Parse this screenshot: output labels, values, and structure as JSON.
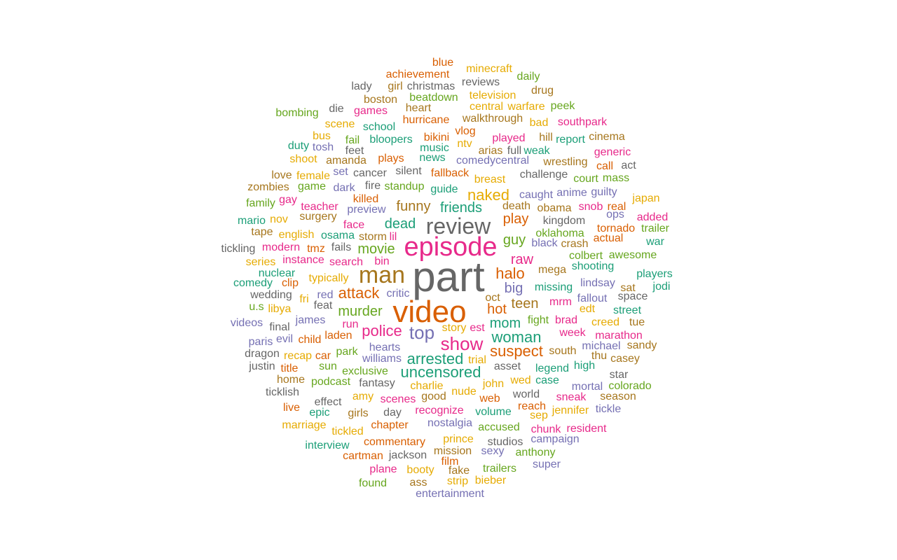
{
  "chart_data": {
    "type": "wordcloud",
    "title": "",
    "palette": [
      "#1b9e77",
      "#d95f02",
      "#7570b3",
      "#e7298a",
      "#66a61e",
      "#e6ab02",
      "#a6761d",
      "#666666"
    ],
    "words": [
      {
        "text": "part",
        "weight": 60
      },
      {
        "text": "video",
        "weight": 44
      },
      {
        "text": "episode",
        "weight": 38
      },
      {
        "text": "man",
        "weight": 34
      },
      {
        "text": "review",
        "weight": 32
      },
      {
        "text": "top",
        "weight": 26
      },
      {
        "text": "show",
        "weight": 26
      },
      {
        "text": "police",
        "weight": 22
      },
      {
        "text": "arrested",
        "weight": 22
      },
      {
        "text": "uncensored",
        "weight": 22
      },
      {
        "text": "woman",
        "weight": 22
      },
      {
        "text": "suspect",
        "weight": 22
      },
      {
        "text": "naked",
        "weight": 22
      },
      {
        "text": "halo",
        "weight": 22
      },
      {
        "text": "attack",
        "weight": 22
      },
      {
        "text": "movie",
        "weight": 20
      },
      {
        "text": "murder",
        "weight": 20
      },
      {
        "text": "dead",
        "weight": 20
      },
      {
        "text": "funny",
        "weight": 20
      },
      {
        "text": "friends",
        "weight": 20
      },
      {
        "text": "play",
        "weight": 20
      },
      {
        "text": "guy",
        "weight": 20
      },
      {
        "text": "raw",
        "weight": 20
      },
      {
        "text": "big",
        "weight": 20
      },
      {
        "text": "teen",
        "weight": 20
      },
      {
        "text": "hot",
        "weight": 20
      },
      {
        "text": "mom",
        "weight": 20
      },
      {
        "text": "blue",
        "weight": 16
      },
      {
        "text": "achievement",
        "weight": 16
      },
      {
        "text": "minecraft",
        "weight": 16
      },
      {
        "text": "daily",
        "weight": 16
      },
      {
        "text": "reviews",
        "weight": 16
      },
      {
        "text": "lady",
        "weight": 16
      },
      {
        "text": "girl",
        "weight": 16
      },
      {
        "text": "christmas",
        "weight": 16
      },
      {
        "text": "drug",
        "weight": 16
      },
      {
        "text": "television",
        "weight": 16
      },
      {
        "text": "boston",
        "weight": 16
      },
      {
        "text": "beatdown",
        "weight": 16
      },
      {
        "text": "die",
        "weight": 16
      },
      {
        "text": "games",
        "weight": 16
      },
      {
        "text": "heart",
        "weight": 16
      },
      {
        "text": "central",
        "weight": 16
      },
      {
        "text": "warfare",
        "weight": 16
      },
      {
        "text": "peek",
        "weight": 16
      },
      {
        "text": "bombing",
        "weight": 16
      },
      {
        "text": "hurricane",
        "weight": 16
      },
      {
        "text": "walkthrough",
        "weight": 16
      },
      {
        "text": "bad",
        "weight": 16
      },
      {
        "text": "southpark",
        "weight": 16
      },
      {
        "text": "scene",
        "weight": 16
      },
      {
        "text": "school",
        "weight": 16
      },
      {
        "text": "vlog",
        "weight": 16
      },
      {
        "text": "bus",
        "weight": 16
      },
      {
        "text": "bikini",
        "weight": 16
      },
      {
        "text": "played",
        "weight": 16
      },
      {
        "text": "hill",
        "weight": 16
      },
      {
        "text": "cinema",
        "weight": 16
      },
      {
        "text": "fail",
        "weight": 16
      },
      {
        "text": "bloopers",
        "weight": 16
      },
      {
        "text": "ntv",
        "weight": 16
      },
      {
        "text": "report",
        "weight": 16
      },
      {
        "text": "duty",
        "weight": 16
      },
      {
        "text": "tosh",
        "weight": 16
      },
      {
        "text": "feet",
        "weight": 16
      },
      {
        "text": "music",
        "weight": 16
      },
      {
        "text": "arias",
        "weight": 16
      },
      {
        "text": "full",
        "weight": 16
      },
      {
        "text": "weak",
        "weight": 16
      },
      {
        "text": "generic",
        "weight": 16
      },
      {
        "text": "shoot",
        "weight": 16
      },
      {
        "text": "amanda",
        "weight": 16
      },
      {
        "text": "plays",
        "weight": 16
      },
      {
        "text": "news",
        "weight": 16
      },
      {
        "text": "comedycentral",
        "weight": 16
      },
      {
        "text": "wrestling",
        "weight": 16
      },
      {
        "text": "call",
        "weight": 16
      },
      {
        "text": "act",
        "weight": 16
      },
      {
        "text": "love",
        "weight": 16
      },
      {
        "text": "set",
        "weight": 16
      },
      {
        "text": "cancer",
        "weight": 16
      },
      {
        "text": "silent",
        "weight": 16
      },
      {
        "text": "fallback",
        "weight": 16
      },
      {
        "text": "challenge",
        "weight": 16
      },
      {
        "text": "female",
        "weight": 16
      },
      {
        "text": "breast",
        "weight": 16
      },
      {
        "text": "court",
        "weight": 16
      },
      {
        "text": "mass",
        "weight": 16
      },
      {
        "text": "zombies",
        "weight": 16
      },
      {
        "text": "game",
        "weight": 16
      },
      {
        "text": "dark",
        "weight": 16
      },
      {
        "text": "fire",
        "weight": 16
      },
      {
        "text": "standup",
        "weight": 16
      },
      {
        "text": "guide",
        "weight": 16
      },
      {
        "text": "caught",
        "weight": 16
      },
      {
        "text": "anime",
        "weight": 16
      },
      {
        "text": "guilty",
        "weight": 16
      },
      {
        "text": "japan",
        "weight": 16
      },
      {
        "text": "family",
        "weight": 16
      },
      {
        "text": "gay",
        "weight": 16
      },
      {
        "text": "killed",
        "weight": 16
      },
      {
        "text": "teacher",
        "weight": 16
      },
      {
        "text": "death",
        "weight": 16
      },
      {
        "text": "obama",
        "weight": 16
      },
      {
        "text": "snob",
        "weight": 16
      },
      {
        "text": "real",
        "weight": 16
      },
      {
        "text": "preview",
        "weight": 16
      },
      {
        "text": "surgery",
        "weight": 16
      },
      {
        "text": "ops",
        "weight": 16
      },
      {
        "text": "added",
        "weight": 16
      },
      {
        "text": "mario",
        "weight": 16
      },
      {
        "text": "nov",
        "weight": 16
      },
      {
        "text": "face",
        "weight": 16
      },
      {
        "text": "kingdom",
        "weight": 16
      },
      {
        "text": "tornado",
        "weight": 16
      },
      {
        "text": "trailer",
        "weight": 16
      },
      {
        "text": "tape",
        "weight": 16
      },
      {
        "text": "english",
        "weight": 16
      },
      {
        "text": "osama",
        "weight": 16
      },
      {
        "text": "storm",
        "weight": 16
      },
      {
        "text": "lil",
        "weight": 16
      },
      {
        "text": "oklahoma",
        "weight": 16
      },
      {
        "text": "actual",
        "weight": 16
      },
      {
        "text": "tickling",
        "weight": 16
      },
      {
        "text": "modern",
        "weight": 16
      },
      {
        "text": "tmz",
        "weight": 16
      },
      {
        "text": "fails",
        "weight": 16
      },
      {
        "text": "black",
        "weight": 16
      },
      {
        "text": "crash",
        "weight": 16
      },
      {
        "text": "war",
        "weight": 16
      },
      {
        "text": "colbert",
        "weight": 16
      },
      {
        "text": "awesome",
        "weight": 16
      },
      {
        "text": "instance",
        "weight": 16
      },
      {
        "text": "search",
        "weight": 16
      },
      {
        "text": "bin",
        "weight": 16
      },
      {
        "text": "series",
        "weight": 16
      },
      {
        "text": "mega",
        "weight": 16
      },
      {
        "text": "shooting",
        "weight": 16
      },
      {
        "text": "nuclear",
        "weight": 16
      },
      {
        "text": "players",
        "weight": 16
      },
      {
        "text": "typically",
        "weight": 16
      },
      {
        "text": "lindsay",
        "weight": 16
      },
      {
        "text": "comedy",
        "weight": 16
      },
      {
        "text": "clip",
        "weight": 16
      },
      {
        "text": "missing",
        "weight": 16
      },
      {
        "text": "sat",
        "weight": 16
      },
      {
        "text": "jodi",
        "weight": 16
      },
      {
        "text": "wedding",
        "weight": 16
      },
      {
        "text": "red",
        "weight": 16
      },
      {
        "text": "critic",
        "weight": 16
      },
      {
        "text": "fallout",
        "weight": 16
      },
      {
        "text": "space",
        "weight": 16
      },
      {
        "text": "fri",
        "weight": 16
      },
      {
        "text": "oct",
        "weight": 16
      },
      {
        "text": "u.s",
        "weight": 16
      },
      {
        "text": "libya",
        "weight": 16
      },
      {
        "text": "feat",
        "weight": 16
      },
      {
        "text": "mrm",
        "weight": 16
      },
      {
        "text": "edt",
        "weight": 16
      },
      {
        "text": "street",
        "weight": 16
      },
      {
        "text": "james",
        "weight": 16
      },
      {
        "text": "fight",
        "weight": 16
      },
      {
        "text": "brad",
        "weight": 16
      },
      {
        "text": "videos",
        "weight": 16
      },
      {
        "text": "run",
        "weight": 16
      },
      {
        "text": "creed",
        "weight": 16
      },
      {
        "text": "tue",
        "weight": 16
      },
      {
        "text": "final",
        "weight": 16
      },
      {
        "text": "story",
        "weight": 16
      },
      {
        "text": "est",
        "weight": 16
      },
      {
        "text": "laden",
        "weight": 16
      },
      {
        "text": "week",
        "weight": 16
      },
      {
        "text": "marathon",
        "weight": 16
      },
      {
        "text": "paris",
        "weight": 16
      },
      {
        "text": "evil",
        "weight": 16
      },
      {
        "text": "child",
        "weight": 16
      },
      {
        "text": "hearts",
        "weight": 16
      },
      {
        "text": "michael",
        "weight": 16
      },
      {
        "text": "sandy",
        "weight": 16
      },
      {
        "text": "dragon",
        "weight": 16
      },
      {
        "text": "recap",
        "weight": 16
      },
      {
        "text": "car",
        "weight": 16
      },
      {
        "text": "park",
        "weight": 16
      },
      {
        "text": "south",
        "weight": 16
      },
      {
        "text": "williams",
        "weight": 16
      },
      {
        "text": "trial",
        "weight": 16
      },
      {
        "text": "thu",
        "weight": 16
      },
      {
        "text": "casey",
        "weight": 16
      },
      {
        "text": "justin",
        "weight": 16
      },
      {
        "text": "title",
        "weight": 16
      },
      {
        "text": "sun",
        "weight": 16
      },
      {
        "text": "asset",
        "weight": 16
      },
      {
        "text": "high",
        "weight": 16
      },
      {
        "text": "exclusive",
        "weight": 16
      },
      {
        "text": "legend",
        "weight": 16
      },
      {
        "text": "star",
        "weight": 16
      },
      {
        "text": "home",
        "weight": 16
      },
      {
        "text": "podcast",
        "weight": 16
      },
      {
        "text": "fantasy",
        "weight": 16
      },
      {
        "text": "john",
        "weight": 16
      },
      {
        "text": "wed",
        "weight": 16
      },
      {
        "text": "case",
        "weight": 16
      },
      {
        "text": "charlie",
        "weight": 16
      },
      {
        "text": "mortal",
        "weight": 16
      },
      {
        "text": "colorado",
        "weight": 16
      },
      {
        "text": "ticklish",
        "weight": 16
      },
      {
        "text": "nude",
        "weight": 16
      },
      {
        "text": "good",
        "weight": 16
      },
      {
        "text": "world",
        "weight": 16
      },
      {
        "text": "amy",
        "weight": 16
      },
      {
        "text": "scenes",
        "weight": 16
      },
      {
        "text": "web",
        "weight": 16
      },
      {
        "text": "sneak",
        "weight": 16
      },
      {
        "text": "season",
        "weight": 16
      },
      {
        "text": "effect",
        "weight": 16
      },
      {
        "text": "live",
        "weight": 16
      },
      {
        "text": "tickle",
        "weight": 16
      },
      {
        "text": "reach",
        "weight": 16
      },
      {
        "text": "epic",
        "weight": 16
      },
      {
        "text": "girls",
        "weight": 16
      },
      {
        "text": "day",
        "weight": 16
      },
      {
        "text": "recognize",
        "weight": 16
      },
      {
        "text": "volume",
        "weight": 16
      },
      {
        "text": "jennifer",
        "weight": 16
      },
      {
        "text": "sep",
        "weight": 16
      },
      {
        "text": "marriage",
        "weight": 16
      },
      {
        "text": "chapter",
        "weight": 16
      },
      {
        "text": "nostalgia",
        "weight": 16
      },
      {
        "text": "accused",
        "weight": 16
      },
      {
        "text": "chunk",
        "weight": 16
      },
      {
        "text": "resident",
        "weight": 16
      },
      {
        "text": "tickled",
        "weight": 16
      },
      {
        "text": "prince",
        "weight": 16
      },
      {
        "text": "campaign",
        "weight": 16
      },
      {
        "text": "commentary",
        "weight": 16
      },
      {
        "text": "studios",
        "weight": 16
      },
      {
        "text": "interview",
        "weight": 16
      },
      {
        "text": "mission",
        "weight": 16
      },
      {
        "text": "sexy",
        "weight": 16
      },
      {
        "text": "anthony",
        "weight": 16
      },
      {
        "text": "cartman",
        "weight": 16
      },
      {
        "text": "jackson",
        "weight": 16
      },
      {
        "text": "film",
        "weight": 16
      },
      {
        "text": "super",
        "weight": 16
      },
      {
        "text": "plane",
        "weight": 16
      },
      {
        "text": "booty",
        "weight": 16
      },
      {
        "text": "fake",
        "weight": 16
      },
      {
        "text": "trailers",
        "weight": 16
      },
      {
        "text": "found",
        "weight": 16
      },
      {
        "text": "ass",
        "weight": 16
      },
      {
        "text": "strip",
        "weight": 16
      },
      {
        "text": "bieber",
        "weight": 16
      },
      {
        "text": "entertainment",
        "weight": 16
      }
    ]
  }
}
